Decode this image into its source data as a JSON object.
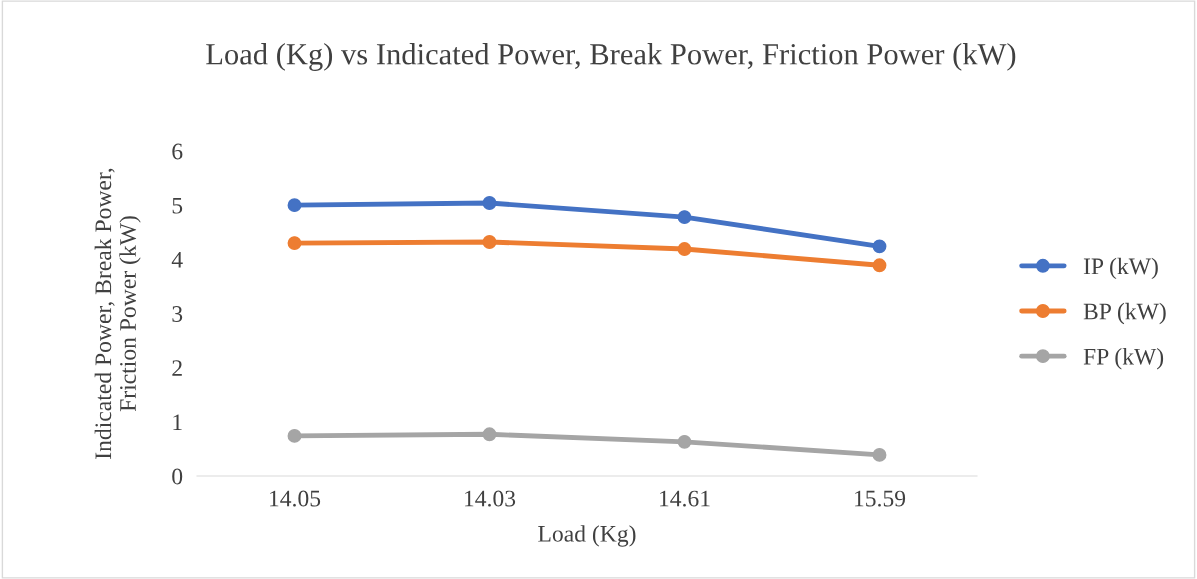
{
  "chart_data": {
    "type": "line",
    "title": "Load (Kg) vs Indicated Power, Break Power, Friction Power (kW)",
    "xlabel": "Load (Kg)",
    "ylabel": "Indicated Power, Break Power,\nFriction Power (kW)",
    "categories": [
      "14.05",
      "14.03",
      "14.61",
      "15.59"
    ],
    "series": [
      {
        "name": "IP (kW)",
        "color": "#4472c4",
        "values": [
          5.0,
          5.04,
          4.78,
          4.24
        ]
      },
      {
        "name": "BP (kW)",
        "color": "#ed7d31",
        "values": [
          4.3,
          4.32,
          4.19,
          3.89
        ]
      },
      {
        "name": "FP (kW)",
        "color": "#a5a5a5",
        "values": [
          0.74,
          0.77,
          0.63,
          0.39
        ]
      }
    ],
    "ylim": [
      0,
      6
    ],
    "yticks": [
      0,
      1,
      2,
      3,
      4,
      5,
      6
    ],
    "grid": false,
    "legend": "right",
    "marker": "circle",
    "line_style": "solid"
  }
}
